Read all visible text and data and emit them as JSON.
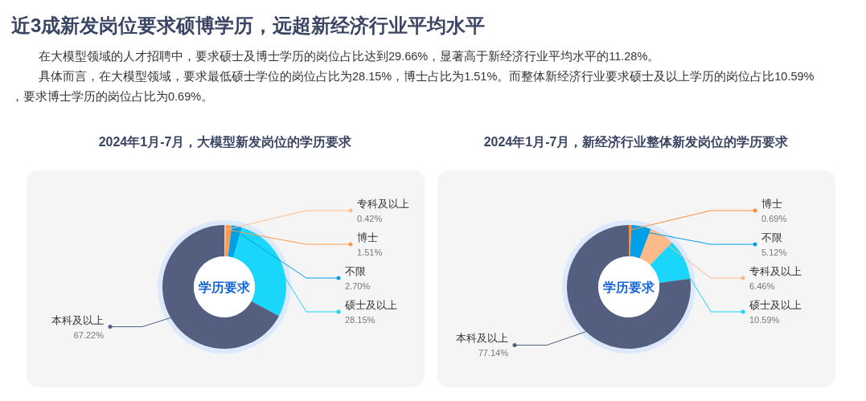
{
  "chart_data": [
    {
      "type": "other",
      "title": "近3成新发岗位要求硕博学历，远超新经济行业平均水平",
      "annotations": [
        "在大模型领域的人才招聘中，要求硕士及博士学历的岗位占比达到29.66%，显著高于新经济行业平均水平的11.28%。",
        "具体而言，在大模型领域，要求最低硕士学位的岗位占比为28.15%，博士占比为1.51%。而整体新经济行业要求硕士及以上学历的岗位占比10.59%，要求博士学历的岗位占比为0.69%。"
      ]
    },
    {
      "type": "donut",
      "title": "2024年1月-7月，大模型新发岗位的学历要求",
      "annotations": [
        "学历要求"
      ],
      "categories": [
        "专科及以上",
        "博士",
        "不限",
        "硕士及以上",
        "本科及以上"
      ],
      "values": [
        0.42,
        1.51,
        2.7,
        28.15,
        67.22
      ],
      "value_labels": [
        "0.42%",
        "1.51%",
        "2.70%",
        "28.15%",
        "67.22%"
      ],
      "colors": [
        "#fcbf8f",
        "#ff9a4d",
        "#00a0e9",
        "#1ad6fb",
        "#545f80"
      ]
    },
    {
      "type": "donut",
      "title": "2024年1月-7月，新经济行业整体新发岗位的学历要求",
      "annotations": [
        "学历要求"
      ],
      "categories": [
        "博士",
        "不限",
        "专科及以上",
        "硕士及以上",
        "本科及以上"
      ],
      "values": [
        0.69,
        5.12,
        6.46,
        10.59,
        77.14
      ],
      "value_labels": [
        "0.69%",
        "5.12%",
        "6.46%",
        "10.59%",
        "77.14%"
      ],
      "colors": [
        "#ff8c3a",
        "#00a0e9",
        "#fcb98a",
        "#1ad6fb",
        "#545f80"
      ]
    }
  ]
}
